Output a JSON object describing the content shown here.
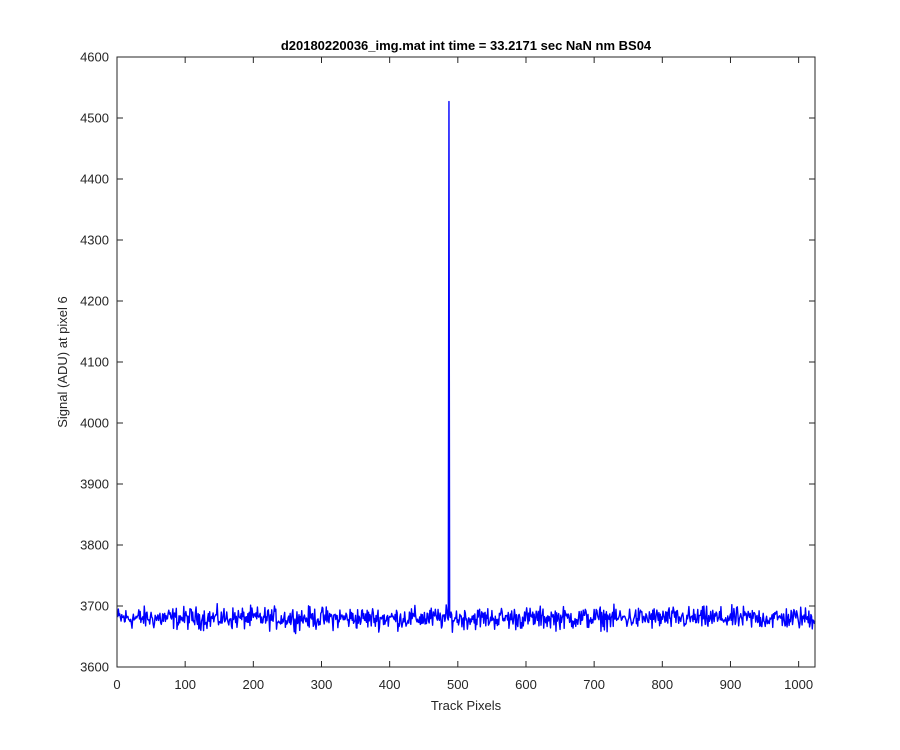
{
  "chart_data": {
    "type": "line",
    "title": "d20180220036_img.mat int time = 33.2171 sec  NaN nm BS04",
    "xlabel": "Track Pixels",
    "ylabel": "Signal (ADU) at pixel 6",
    "xlim": [
      0,
      1024
    ],
    "ylim": [
      3600,
      4600
    ],
    "xticks": [
      0,
      100,
      200,
      300,
      400,
      500,
      600,
      700,
      800,
      900,
      1000
    ],
    "yticks": [
      3600,
      3700,
      3800,
      3900,
      4000,
      4100,
      4200,
      4300,
      4400,
      4500,
      4600
    ],
    "xtick_labels": [
      "0",
      "100",
      "200",
      "300",
      "400",
      "500",
      "600",
      "700",
      "800",
      "900",
      "1000"
    ],
    "ytick_labels": [
      "3600",
      "3700",
      "3800",
      "3900",
      "4000",
      "4100",
      "4200",
      "4300",
      "4400",
      "4500",
      "4600"
    ],
    "grid": false,
    "series_color": "#0000ff",
    "series": [
      {
        "baseline_mean": 3680,
        "noise_range": [
          3652,
          3711
        ],
        "x_range": [
          1,
          1024
        ],
        "spike": {
          "x": 487,
          "y": 4527
        }
      }
    ]
  }
}
